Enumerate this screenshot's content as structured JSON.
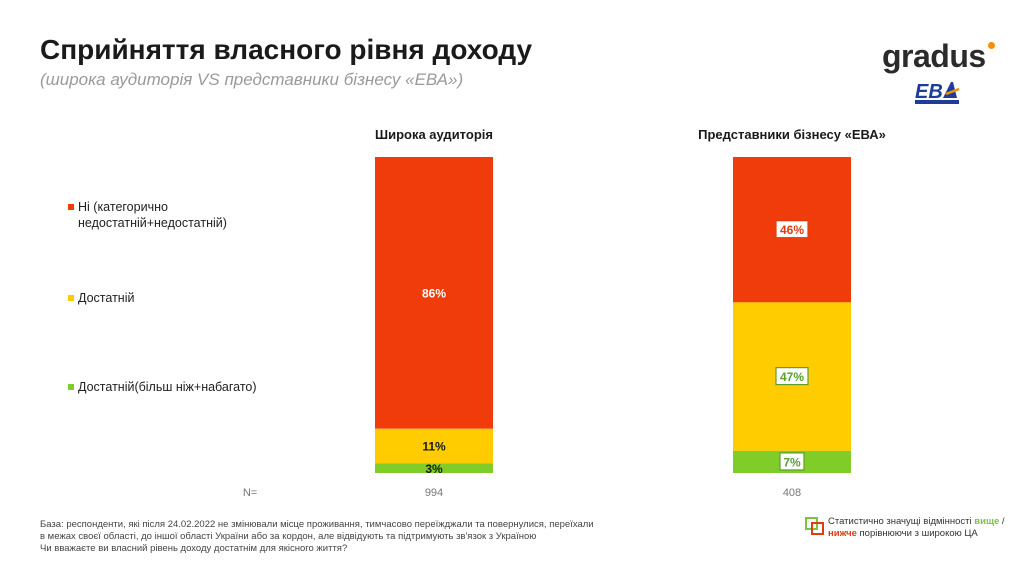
{
  "header": {
    "title": "Сприйняття власного рівня доходу",
    "subtitle": "(широка аудиторія VS представники бізнесу «ЕВА»)"
  },
  "logos": {
    "gradus": "gradus",
    "eba": "EBA"
  },
  "colors": {
    "red": "#f03c0a",
    "yellow": "#ffcc00",
    "green": "#80cc28"
  },
  "chart_data": {
    "type": "bar",
    "stacked": true,
    "unit": "%",
    "categories": [
      "Широка аудиторія",
      "Представники бізнесу «ЕВА»"
    ],
    "n_label": "N=",
    "n": [
      "994",
      "408"
    ],
    "ylim": [
      0,
      100
    ],
    "legend_position": "left",
    "series": [
      {
        "name": "Ні (категорично недостатній+недостатній)",
        "values": [
          86,
          46
        ],
        "color": "#f03c0a",
        "labels": [
          "86%",
          "46%"
        ]
      },
      {
        "name": "Достатній",
        "values": [
          11,
          47
        ],
        "color": "#ffcc00",
        "labels": [
          "11%",
          "47%"
        ]
      },
      {
        "name": "Достатній(більш ніж+набагато)",
        "values": [
          3,
          7
        ],
        "color": "#80cc28",
        "labels": [
          "3%",
          "7%"
        ]
      }
    ],
    "highlight": {
      "1": [
        [
          "box",
          "lo"
        ],
        [
          "box",
          "hi"
        ],
        [
          "box",
          "hi"
        ]
      ]
    }
  },
  "footer": {
    "base": "База:  респонденти, які після 24.02.2022 не змінювали місце проживання, тимчасово переїжджали та повернулися, переїхали в межах своєї області, до іншої області України або за кордон, але відвідують та підтримують зв'язок з Україною",
    "question": "Чи вважаєте ви власний рівень доходу достатнім для якісного життя?"
  },
  "note": {
    "part1": "Статистично значущі відмінності ",
    "higher": "вище",
    "sep": " / ",
    "lower": "нижче",
    "part2": " порівнюючи з широкою ЦА"
  }
}
